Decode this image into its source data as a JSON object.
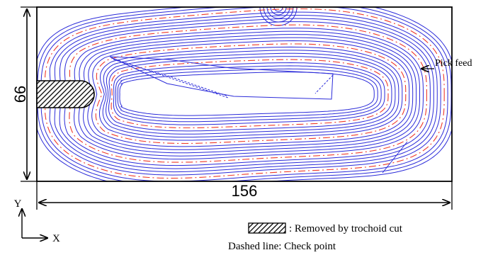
{
  "diagram": {
    "colors": {
      "path": "#2b2bd9",
      "check": "#ee3a2a",
      "line": "#000000"
    },
    "dimensions": {
      "height_label": "66",
      "width_label": "156"
    },
    "annotations": {
      "pick_feed": "Pick feed"
    },
    "axes": {
      "y": "Y",
      "x": "X"
    },
    "legend": {
      "trochoid": ": Removed by trochoid cut",
      "dashed": "Dashed line: Check point"
    }
  }
}
